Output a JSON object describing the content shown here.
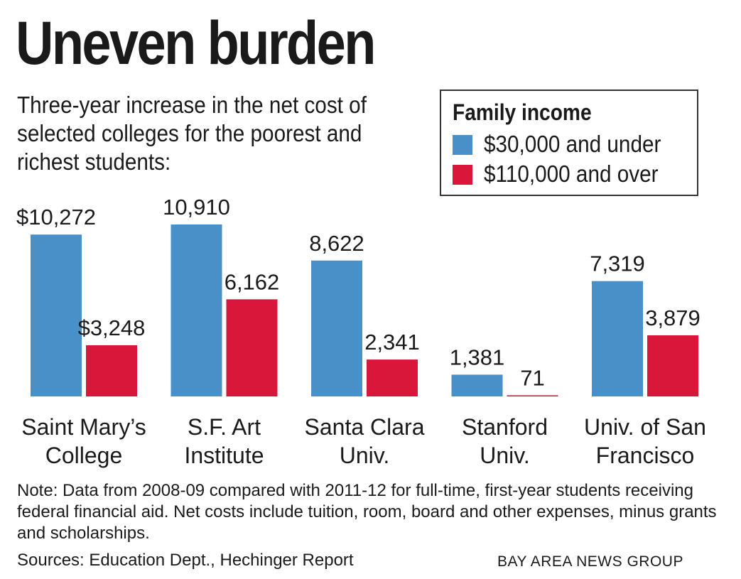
{
  "title": "Uneven burden",
  "subtitle": "Three-year increase in the net cost of selected colleges for the poorest and richest students:",
  "legend": {
    "title": "Family income",
    "items": [
      {
        "label": "$30,000 and under",
        "color": "#4a90c8"
      },
      {
        "label": "$110,000 and over",
        "color": "#d8173a"
      }
    ]
  },
  "chart_data": {
    "type": "bar",
    "categories": [
      "Saint Mary’s College",
      "S.F. Art Institute",
      "Santa Clara Univ.",
      "Stanford Univ.",
      "Univ. of San Francisco"
    ],
    "category_lines": [
      [
        "Saint Mary’s",
        "College"
      ],
      [
        "S.F. Art",
        "Institute"
      ],
      [
        "Santa Clara",
        "Univ."
      ],
      [
        "Stanford",
        "Univ."
      ],
      [
        "Univ. of San",
        "Francisco"
      ]
    ],
    "series": [
      {
        "name": "$30,000 and under",
        "color": "#4a90c8",
        "values": [
          10272,
          10910,
          8622,
          1381,
          7319
        ],
        "labels": [
          "$10,272",
          "10,910",
          "8,622",
          "1,381",
          "7,319"
        ]
      },
      {
        "name": "$110,000 and over",
        "color": "#d8173a",
        "values": [
          3248,
          6162,
          2341,
          71,
          3879
        ],
        "labels": [
          "$3,248",
          "6,162",
          "2,341",
          "71",
          "3,879"
        ]
      }
    ]
  },
  "note": "Note: Data from 2008-09 compared with 2011-12 for full-time, first-year students receiving federal financial aid. Net costs include tuition, room, board and other expenses, minus grants and scholarships.",
  "source": "Sources: Education Dept., Hechinger Report",
  "credit": "BAY AREA NEWS GROUP"
}
